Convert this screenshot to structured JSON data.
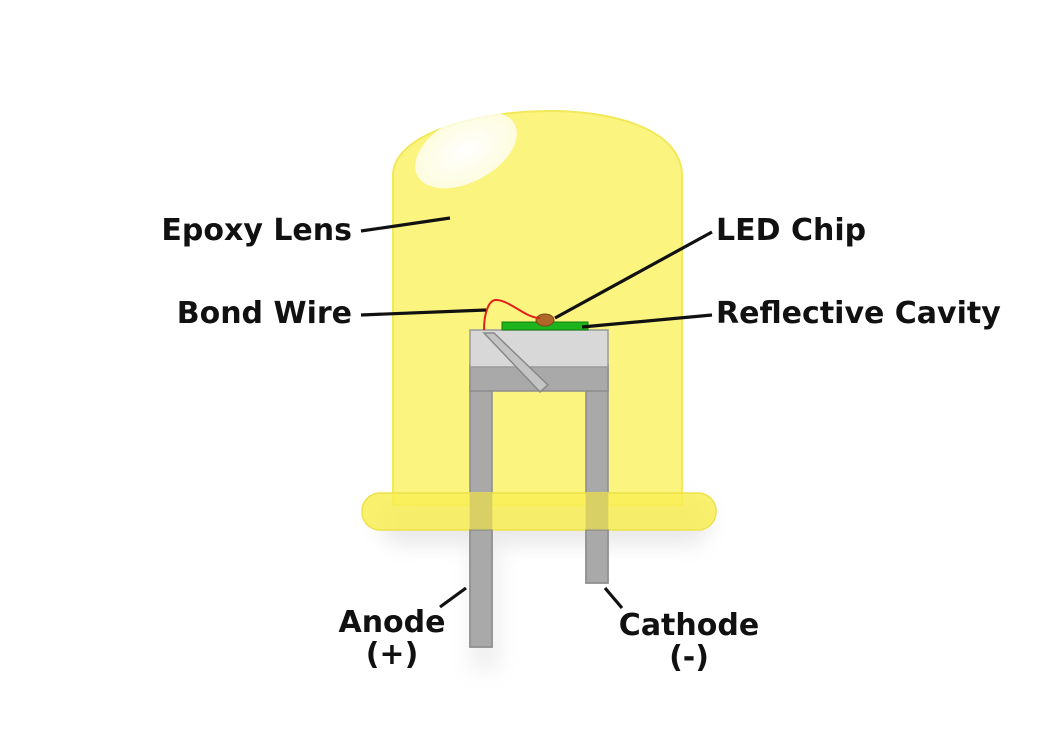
{
  "labels": {
    "epoxy_lens": "Epoxy Lens",
    "bond_wire": "Bond Wire",
    "led_chip": "LED Chip",
    "reflective_cavity": "Reflective Cavity",
    "anode": "Anode",
    "anode_sign": "(+)",
    "cathode": "Cathode",
    "cathode_sign": "(-)"
  },
  "colors": {
    "lens": "#fbf47f",
    "lens_rim": "#f4ea3a",
    "leads": "#a9a9a9",
    "leads_outline": "#8c8c8c",
    "cavity_top": "#d8d8d8",
    "chip": "#1db41d",
    "die": "#b0672a",
    "bond_wire": "#e0201a",
    "label_text": "#111111"
  }
}
